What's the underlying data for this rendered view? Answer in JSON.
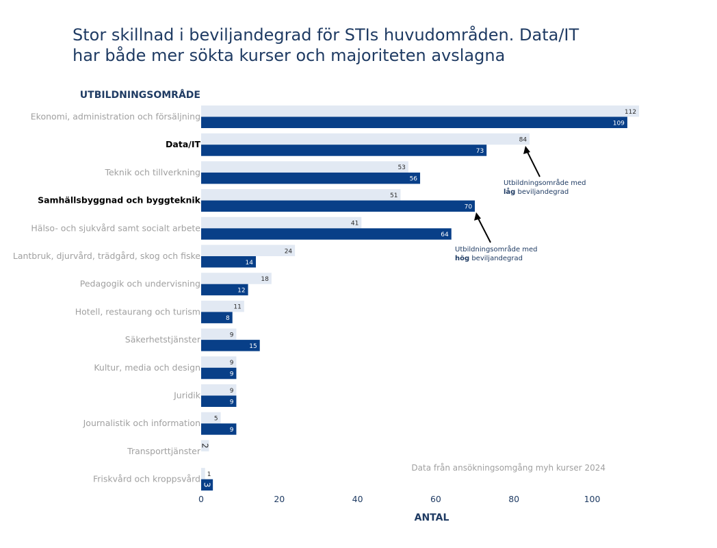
{
  "title": {
    "line1": "Stor skillnad i beviljandegrad för STIs huvudområden. Data/IT",
    "line2": "har både mer sökta kurser och majoriteten avslagna"
  },
  "source_note": "Data från ansökningsomgång myh kurser 2024",
  "annotations": {
    "low": {
      "line1": "Utbildningsområde med",
      "bold": "låg",
      "rest": " beviljandegrad"
    },
    "high": {
      "line1": "Utbildningsområde med",
      "bold": "hög",
      "rest": " beviljandegrad"
    }
  },
  "colors": {
    "light": "#e2e9f3",
    "dark": "#083f88",
    "label_gray": "#a0a0a0",
    "label_bold": "#000000",
    "axis_text": "#1f3b63"
  },
  "chart_data": {
    "type": "bar",
    "orientation": "horizontal",
    "categories": [
      "Ekonomi, administration och försäljning",
      "Data/IT",
      "Teknik och tillverkning",
      "Samhällsbyggnad och byggteknik",
      "Hälso- och sjukvård samt socialt arbete",
      "Lantbruk, djurvård, trädgård, skog och fiske",
      "Pedagogik och undervisning",
      "Hotell, restaurang och turism",
      "Säkerhetstjänster",
      "Kultur, media och design",
      "Juridik",
      "Journalistik och information",
      "Transporttjänster",
      "Friskvård och kroppsvård"
    ],
    "highlighted": [
      "Data/IT",
      "Samhällsbyggnad och byggteknik"
    ],
    "series": [
      {
        "values": [
          112,
          84,
          53,
          51,
          41,
          24,
          18,
          11,
          9,
          9,
          9,
          5,
          2,
          1
        ]
      },
      {
        "values": [
          109,
          73,
          56,
          70,
          64,
          14,
          12,
          8,
          15,
          9,
          9,
          9,
          null,
          3
        ]
      }
    ],
    "xlabel": "ANTAL",
    "ylabel": "UTBILDNINGSOMRÅDE",
    "xlim": [
      0,
      112
    ],
    "xticks": [
      0,
      20,
      40,
      60,
      80,
      100
    ],
    "grid": false
  }
}
